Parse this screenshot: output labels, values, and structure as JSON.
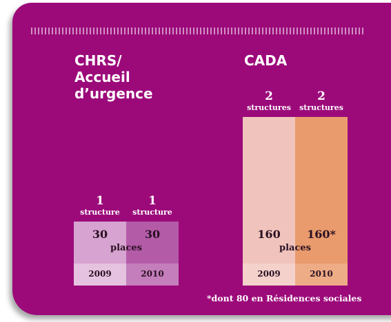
{
  "groups": [
    {
      "title": [
        "CHRS/",
        "Accueil",
        "d’urgence"
      ],
      "places_label": "places",
      "columns": [
        {
          "count": 1,
          "unit": "structure",
          "places": 30,
          "year": 2009
        },
        {
          "count": 1,
          "unit": "structure",
          "places": 30,
          "year": 2010
        }
      ]
    },
    {
      "title": [
        "CADA"
      ],
      "places_label": "places",
      "columns": [
        {
          "count": 2,
          "unit": "structures",
          "places": 160,
          "year": 2009
        },
        {
          "count": 2,
          "unit": "structures",
          "places": "160*",
          "year": 2010
        }
      ]
    }
  ],
  "footnote": "*dont 80 en Résidences sociales"
}
